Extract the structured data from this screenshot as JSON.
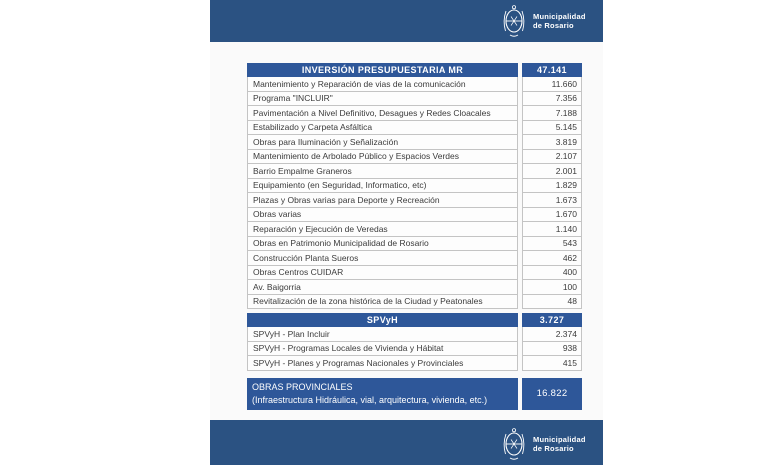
{
  "brand": {
    "line1": "Municipalidad",
    "line2": "de Rosario",
    "seal_icon": "municipal-coat-of-arms"
  },
  "colors": {
    "band": "#2b5282",
    "header_blue": "#2e5799",
    "page_bg": "#fafafa",
    "row_border": "#c4c4c4",
    "text": "#3b3b3b"
  },
  "table": {
    "main": {
      "header": {
        "label": "INVERSIÓN PRESUPUESTARIA MR",
        "value": "47.141"
      },
      "rows": [
        {
          "label": "Mantenimiento y Reparación de vias de la comunicación",
          "value": "11.660"
        },
        {
          "label": "Programa \"INCLUIR\"",
          "value": "7.356"
        },
        {
          "label": "Pavimentación a Nivel Definitivo, Desagues y Redes Cloacales",
          "value": "7.188"
        },
        {
          "label": "Estabilizado y Carpeta Asfáltica",
          "value": "5.145"
        },
        {
          "label": "Obras para Iluminación y Señalización",
          "value": "3.819"
        },
        {
          "label": "Mantenimiento de Arbolado Público y Espacios Verdes",
          "value": "2.107"
        },
        {
          "label": "Barrio Empalme Graneros",
          "value": "2.001"
        },
        {
          "label": "Equipamiento (en Seguridad, Informatico, etc)",
          "value": "1.829"
        },
        {
          "label": "Plazas y Obras varias para Deporte y Recreación",
          "value": "1.673"
        },
        {
          "label": "Obras varias",
          "value": "1.670"
        },
        {
          "label": "Reparación y Ejecución de Veredas",
          "value": "1.140"
        },
        {
          "label": "Obras en Patrimonio Municipalidad de Rosario",
          "value": "543"
        },
        {
          "label": "Construcción Planta Sueros",
          "value": "462"
        },
        {
          "label": "Obras Centros CUIDAR",
          "value": "400"
        },
        {
          "label": "Av. Baigorria",
          "value": "100"
        },
        {
          "label": "Revitalización de la zona histórica de la Ciudad y Peatonales",
          "value": "48"
        }
      ]
    },
    "spvyh": {
      "header": {
        "label": "SPVyH",
        "value": "3.727"
      },
      "rows": [
        {
          "label": "SPVyH - Plan Incluir",
          "value": "2.374"
        },
        {
          "label": "SPVyH - Programas Locales de Vivienda y Hábitat",
          "value": "938"
        },
        {
          "label": "SPVyH - Planes y Programas Nacionales y Provinciales",
          "value": "415"
        }
      ]
    },
    "provincial": {
      "label_line1": "OBRAS PROVINCIALES",
      "label_line2": "(Infraestructura Hidráulica, vial, arquitectura, vivienda, etc.)",
      "value": "16.822"
    }
  }
}
